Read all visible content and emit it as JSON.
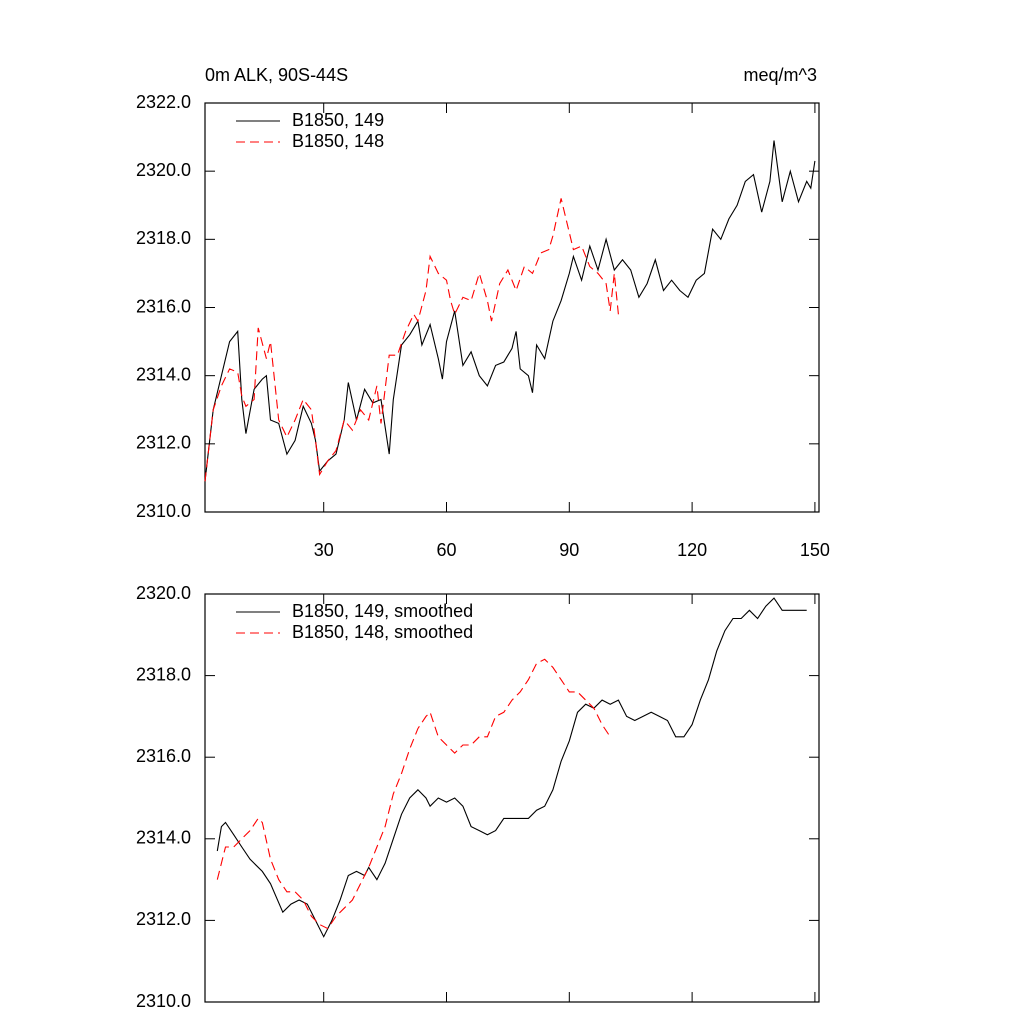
{
  "chart_data": [
    {
      "type": "line",
      "title": "0m ALK, 90S-44S",
      "title_right": "meq/m^3",
      "xlim": [
        1,
        151
      ],
      "xticks": [
        30,
        60,
        90,
        120,
        150
      ],
      "xtick_labels": true,
      "ylim": [
        2310,
        2322
      ],
      "yticks": [
        {
          "value": 2310,
          "label": "2310.0"
        },
        {
          "value": 2312,
          "label": "2312.0"
        },
        {
          "value": 2314,
          "label": "2314.0"
        },
        {
          "value": 2316,
          "label": "2316.0"
        },
        {
          "value": 2318,
          "label": "2318.0"
        },
        {
          "value": 2320,
          "label": "2320.0"
        },
        {
          "value": 2322,
          "label": "2322.0"
        }
      ],
      "legend": "upper left",
      "series": [
        {
          "name": "B1850, 149",
          "color": "#000000",
          "dash": false,
          "x": [
            1,
            3,
            5,
            7,
            9,
            10,
            11,
            13,
            15,
            16,
            17,
            19,
            21,
            23,
            25,
            27,
            28,
            29,
            31,
            33,
            35,
            36,
            38,
            40,
            42,
            44,
            46,
            47,
            49,
            51,
            53,
            54,
            56,
            58,
            59,
            60,
            62,
            64,
            66,
            68,
            70,
            72,
            74,
            76,
            77,
            78,
            80,
            81,
            82,
            84,
            86,
            88,
            90,
            91,
            93,
            95,
            97,
            99,
            101,
            103,
            105,
            107,
            109,
            111,
            113,
            115,
            117,
            119,
            121,
            123,
            125,
            127,
            129,
            131,
            133,
            135,
            137,
            139,
            140,
            142,
            144,
            146,
            148,
            149,
            150
          ],
          "values": [
            2310.9,
            2313.0,
            2314.0,
            2315.0,
            2315.3,
            2313.3,
            2312.3,
            2313.6,
            2313.9,
            2314.0,
            2312.7,
            2312.6,
            2311.7,
            2312.1,
            2313.1,
            2312.6,
            2312.1,
            2311.2,
            2311.5,
            2311.7,
            2312.7,
            2313.8,
            2312.7,
            2313.6,
            2313.2,
            2313.3,
            2311.7,
            2313.3,
            2314.9,
            2315.2,
            2315.6,
            2314.9,
            2315.5,
            2314.5,
            2313.9,
            2315.0,
            2315.9,
            2314.3,
            2314.7,
            2314.0,
            2313.7,
            2314.3,
            2314.4,
            2314.8,
            2315.3,
            2314.2,
            2314.0,
            2313.5,
            2314.9,
            2314.5,
            2315.6,
            2316.2,
            2317.0,
            2317.5,
            2316.8,
            2317.8,
            2317.1,
            2318.0,
            2317.1,
            2317.4,
            2317.1,
            2316.3,
            2316.7,
            2317.4,
            2316.5,
            2316.8,
            2316.5,
            2316.3,
            2316.8,
            2317.0,
            2318.3,
            2318.0,
            2318.6,
            2319.0,
            2319.7,
            2319.9,
            2318.8,
            2319.7,
            2320.9,
            2319.1,
            2320.0,
            2319.1,
            2319.7,
            2319.5,
            2320.3
          ]
        },
        {
          "name": "B1850, 148",
          "color": "#ff0000",
          "dash": true,
          "x": [
            1,
            3,
            5,
            7,
            9,
            10,
            11,
            13,
            14,
            16,
            17,
            19,
            21,
            23,
            25,
            27,
            28,
            29,
            31,
            33,
            35,
            37,
            39,
            41,
            43,
            44,
            46,
            48,
            50,
            52,
            53,
            55,
            56,
            58,
            60,
            61,
            62,
            64,
            66,
            68,
            70,
            71,
            73,
            75,
            77,
            79,
            81,
            83,
            85,
            86,
            88,
            89,
            91,
            93,
            95,
            97,
            99,
            100,
            101,
            102
          ],
          "values": [
            2310.9,
            2313.0,
            2313.7,
            2314.2,
            2314.1,
            2313.4,
            2313.1,
            2313.3,
            2315.4,
            2314.5,
            2315.0,
            2312.7,
            2312.2,
            2312.7,
            2313.3,
            2313.0,
            2312.1,
            2311.1,
            2311.5,
            2311.8,
            2312.7,
            2312.4,
            2313.0,
            2312.7,
            2313.7,
            2312.6,
            2314.6,
            2314.6,
            2315.3,
            2315.8,
            2315.6,
            2316.5,
            2317.5,
            2317.0,
            2316.8,
            2316.2,
            2315.8,
            2316.3,
            2316.2,
            2317.0,
            2316.2,
            2315.6,
            2316.7,
            2317.1,
            2316.5,
            2317.2,
            2317.0,
            2317.6,
            2317.7,
            2318.1,
            2319.2,
            2318.7,
            2317.7,
            2317.8,
            2317.2,
            2317.0,
            2316.7,
            2315.9,
            2317.0,
            2315.8
          ]
        }
      ]
    },
    {
      "type": "line",
      "xlim": [
        1,
        151
      ],
      "xticks": [
        30,
        60,
        90,
        120,
        150
      ],
      "xtick_labels": false,
      "ylim": [
        2310,
        2320
      ],
      "yticks": [
        {
          "value": 2310,
          "label": "2310.0"
        },
        {
          "value": 2312,
          "label": "2312.0"
        },
        {
          "value": 2314,
          "label": "2314.0"
        },
        {
          "value": 2316,
          "label": "2316.0"
        },
        {
          "value": 2318,
          "label": "2318.0"
        },
        {
          "value": 2320,
          "label": "2320.0"
        }
      ],
      "legend": "upper left",
      "series": [
        {
          "name": "B1850, 149, smoothed",
          "color": "#000000",
          "dash": false,
          "x": [
            4,
            5,
            6,
            8,
            10,
            12,
            15,
            17,
            20,
            22,
            24,
            26,
            28,
            30,
            32,
            34,
            36,
            38,
            40,
            41,
            43,
            45,
            47,
            49,
            51,
            53,
            55,
            56,
            58,
            60,
            62,
            64,
            66,
            68,
            70,
            72,
            74,
            76,
            78,
            80,
            82,
            84,
            86,
            88,
            90,
            92,
            94,
            96,
            98,
            100,
            102,
            104,
            106,
            108,
            110,
            112,
            114,
            116,
            118,
            120,
            122,
            124,
            126,
            128,
            130,
            132,
            134,
            136,
            138,
            140,
            142,
            144,
            146,
            148
          ],
          "values": [
            2313.7,
            2314.3,
            2314.4,
            2314.1,
            2313.8,
            2313.5,
            2313.2,
            2312.9,
            2312.2,
            2312.4,
            2312.5,
            2312.4,
            2312.0,
            2311.6,
            2312.0,
            2312.5,
            2313.1,
            2313.2,
            2313.1,
            2313.3,
            2313.0,
            2313.4,
            2314.0,
            2314.6,
            2315.0,
            2315.2,
            2315.0,
            2314.8,
            2315.0,
            2314.9,
            2315.0,
            2314.8,
            2314.3,
            2314.2,
            2314.1,
            2314.2,
            2314.5,
            2314.5,
            2314.5,
            2314.5,
            2314.7,
            2314.8,
            2315.2,
            2315.9,
            2316.4,
            2317.1,
            2317.3,
            2317.2,
            2317.4,
            2317.3,
            2317.4,
            2317.0,
            2316.9,
            2317.0,
            2317.1,
            2317.0,
            2316.9,
            2316.5,
            2316.5,
            2316.8,
            2317.4,
            2317.9,
            2318.6,
            2319.1,
            2319.4,
            2319.4,
            2319.6,
            2319.4,
            2319.7,
            2319.9,
            2319.6,
            2319.6,
            2319.6,
            2319.6
          ]
        },
        {
          "name": "B1850, 148, smoothed",
          "color": "#ff0000",
          "dash": true,
          "x": [
            4,
            6,
            8,
            10,
            12,
            14,
            15,
            17,
            19,
            21,
            23,
            25,
            27,
            29,
            31,
            33,
            35,
            37,
            39,
            41,
            43,
            45,
            47,
            49,
            51,
            53,
            55,
            56,
            58,
            60,
            62,
            64,
            66,
            68,
            70,
            72,
            74,
            76,
            78,
            80,
            82,
            84,
            86,
            88,
            90,
            92,
            94,
            96,
            98,
            100
          ],
          "values": [
            2313.0,
            2313.8,
            2313.8,
            2314.0,
            2314.2,
            2314.5,
            2314.4,
            2313.5,
            2313.0,
            2312.7,
            2312.7,
            2312.5,
            2312.1,
            2311.9,
            2311.8,
            2312.1,
            2312.3,
            2312.5,
            2312.9,
            2313.3,
            2313.8,
            2314.3,
            2315.1,
            2315.6,
            2316.2,
            2316.7,
            2317.0,
            2317.1,
            2316.5,
            2316.3,
            2316.1,
            2316.3,
            2316.3,
            2316.5,
            2316.5,
            2317.0,
            2317.1,
            2317.4,
            2317.6,
            2317.9,
            2318.3,
            2318.4,
            2318.2,
            2317.9,
            2317.6,
            2317.6,
            2317.4,
            2317.2,
            2316.8,
            2316.5
          ]
        }
      ]
    }
  ]
}
